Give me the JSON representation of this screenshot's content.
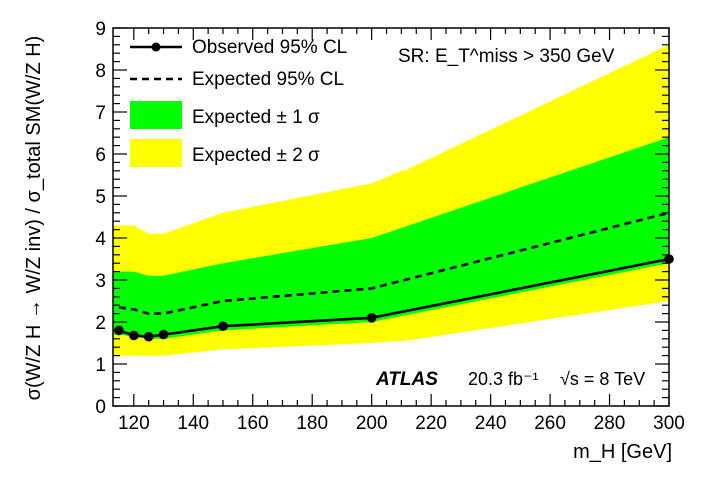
{
  "chart_data": {
    "type": "line",
    "xlabel": "m_H [GeV]",
    "ylabel": "σ(W/Z H → W/Z inv) / σ_total SM(W/Z H)",
    "xlim": [
      113,
      300
    ],
    "ylim": [
      0,
      9
    ],
    "x_ticks": [
      120,
      140,
      160,
      180,
      200,
      220,
      240,
      260,
      280,
      300
    ],
    "y_ticks": [
      0,
      1,
      2,
      3,
      4,
      5,
      6,
      7,
      8,
      9
    ],
    "series": [
      {
        "name": "Observed 95% CL",
        "style": "solid-with-markers",
        "x": [
          115,
          120,
          125,
          130,
          150,
          200,
          300
        ],
        "y": [
          1.8,
          1.68,
          1.65,
          1.7,
          1.9,
          2.1,
          3.5
        ]
      },
      {
        "name": "Expected 95% CL",
        "style": "dashed",
        "x": [
          115,
          120,
          125,
          130,
          150,
          200,
          300
        ],
        "y": [
          2.35,
          2.3,
          2.2,
          2.2,
          2.5,
          2.8,
          4.6
        ]
      }
    ],
    "bands": [
      {
        "name": "Expected ± 2 σ",
        "color": "#ffff00",
        "x": [
          113,
          115,
          120,
          125,
          130,
          150,
          200,
          210,
          211,
          300
        ],
        "upper": [
          4.3,
          4.3,
          4.3,
          4.1,
          4.1,
          4.6,
          5.3,
          5.6,
          5.6,
          8.6
        ],
        "lower": [
          1.2,
          1.2,
          1.2,
          1.2,
          1.2,
          1.35,
          1.5,
          1.55,
          1.55,
          2.5
        ]
      },
      {
        "name": "Expected ± 1 σ",
        "color": "#00ff00",
        "x": [
          113,
          115,
          120,
          125,
          130,
          150,
          200,
          300
        ],
        "upper": [
          3.2,
          3.2,
          3.2,
          3.1,
          3.1,
          3.4,
          4.0,
          6.4
        ],
        "lower": [
          1.7,
          1.7,
          1.65,
          1.6,
          1.6,
          1.8,
          2.0,
          3.4
        ]
      }
    ],
    "legend": {
      "position": "top-left",
      "entries": [
        "Observed 95% CL",
        "Expected 95% CL",
        "Expected ± 1 σ",
        "Expected ± 2 σ"
      ]
    },
    "annotations": {
      "signal_region": "SR: E_T^miss > 350 GeV",
      "experiment": "ATLAS",
      "luminosity": "20.3 fb⁻¹",
      "energy": "√s = 8 TeV"
    }
  }
}
